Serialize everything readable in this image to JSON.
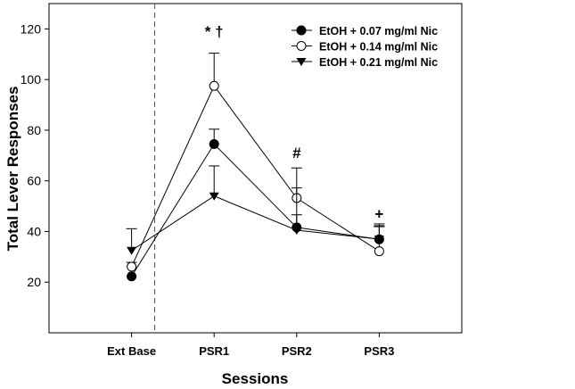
{
  "chart_data": {
    "type": "line",
    "title": "",
    "xlabel": "Sessions",
    "ylabel": "Total Lever Responses",
    "categories": [
      "Ext Base",
      "PSR1",
      "PSR2",
      "PSR3"
    ],
    "xlim": [
      0,
      5
    ],
    "ylim": [
      0,
      130
    ],
    "yticks": [
      20,
      40,
      60,
      80,
      100,
      120
    ],
    "grid": false,
    "legend_position": "top-right",
    "divider_after_category": "Ext Base",
    "series": [
      {
        "name": "EtOH + 0.07 mg/ml Nic",
        "marker": "filled-circle",
        "values": [
          22.3,
          74.5,
          41.6,
          36.9
        ],
        "error_upper": [
          null,
          80.4,
          46.6,
          41.9
        ]
      },
      {
        "name": "EtOH + 0.14 mg/ml Nic",
        "marker": "open-circle",
        "values": [
          26.1,
          97.5,
          53.2,
          32.2
        ],
        "error_upper": [
          27.8,
          110.4,
          65.1,
          43.0
        ]
      },
      {
        "name": "EtOH + 0.21 mg/ml Nic",
        "marker": "filled-triangle-down",
        "values": [
          32.5,
          54.0,
          40.5,
          37.0
        ],
        "error_upper": [
          41.1,
          65.9,
          57.2,
          42.3
        ]
      }
    ],
    "annotations": [
      {
        "text": "* †",
        "category": "PSR1",
        "y": 117
      },
      {
        "text": "#",
        "category": "PSR2",
        "y": 69
      },
      {
        "text": "+",
        "category": "PSR3",
        "y": 45
      }
    ]
  }
}
